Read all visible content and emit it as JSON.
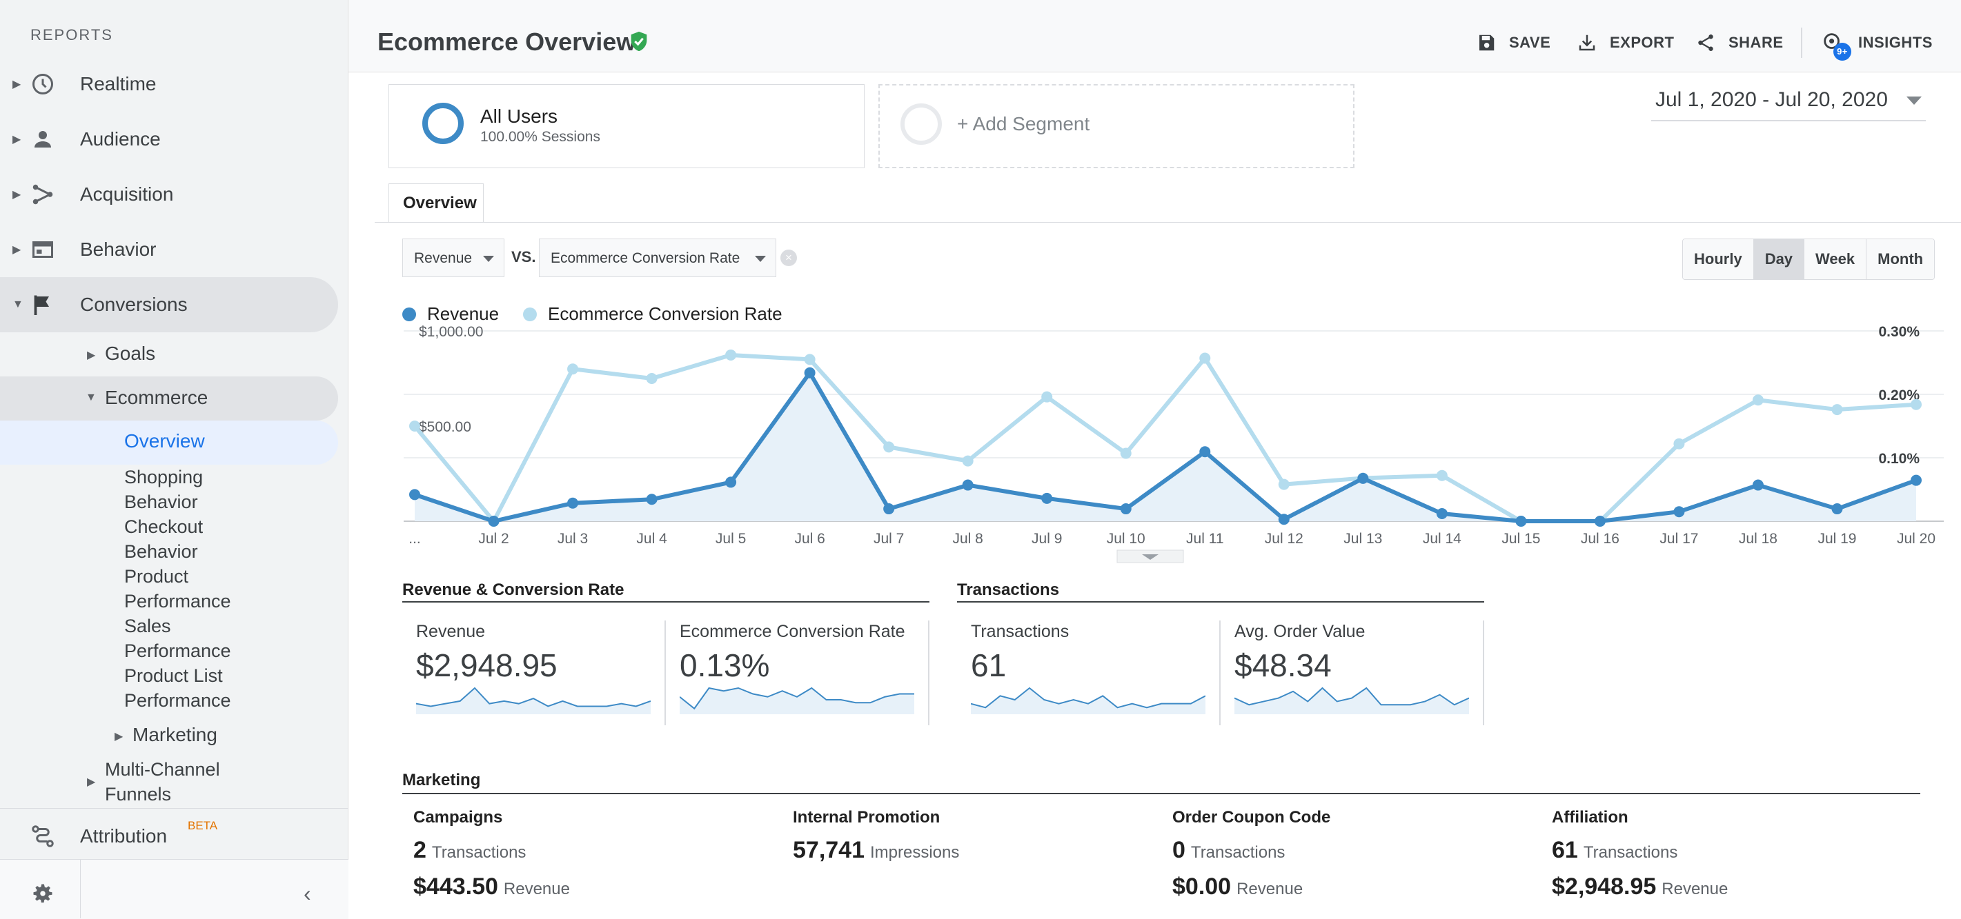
{
  "sidebar": {
    "section_label": "REPORTS",
    "items": [
      {
        "label": "Realtime"
      },
      {
        "label": "Audience"
      },
      {
        "label": "Acquisition"
      },
      {
        "label": "Behavior"
      },
      {
        "label": "Conversions"
      }
    ],
    "sub": {
      "goals": "Goals",
      "ecommerce": "Ecommerce",
      "overview": "Overview",
      "shopping_behavior": [
        "Shopping",
        "Behavior"
      ],
      "checkout_behavior": [
        "Checkout",
        "Behavior"
      ],
      "product_performance": [
        "Product",
        "Performance"
      ],
      "sales_performance": [
        "Sales",
        "Performance"
      ],
      "product_list_performance": [
        "Product List",
        "Performance"
      ],
      "marketing": "Marketing",
      "multi_channel": [
        "Multi-Channel",
        "Funnels"
      ]
    },
    "attribution": "Attribution",
    "beta": "BETA"
  },
  "header": {
    "title": "Ecommerce Overview",
    "actions": {
      "save": "SAVE",
      "export": "EXPORT",
      "share": "SHARE",
      "insights": "INSIGHTS"
    },
    "insights_badge": "9+"
  },
  "segments": {
    "primary_name": "All Users",
    "primary_sub": "100.00% Sessions",
    "add_label": "+ Add Segment"
  },
  "date_range": "Jul 1, 2020 - Jul 20, 2020",
  "tabs": {
    "overview": "Overview"
  },
  "metric_picker": {
    "primary": "Revenue",
    "vs": "VS.",
    "secondary": "Ecommerce Conversion Rate"
  },
  "granularity": {
    "options": [
      "Hourly",
      "Day",
      "Week",
      "Month"
    ],
    "selected": "Day"
  },
  "colors": {
    "revenue": "#3d8ac6",
    "conversion": "#b4dcee",
    "accent": "#1a73e8",
    "verified": "#34a853"
  },
  "chart_data": {
    "type": "line",
    "x": [
      "...",
      "Jul 2",
      "Jul 3",
      "Jul 4",
      "Jul 5",
      "Jul 6",
      "Jul 7",
      "Jul 8",
      "Jul 9",
      "Jul 10",
      "Jul 11",
      "Jul 12",
      "Jul 13",
      "Jul 14",
      "Jul 15",
      "Jul 16",
      "Jul 17",
      "Jul 18",
      "Jul 19",
      "Jul 20"
    ],
    "y_left_ticks": [
      "$1,000.00",
      "$500.00"
    ],
    "y_right_ticks": [
      "0.30%",
      "0.20%",
      "0.10%"
    ],
    "y_left_range": [
      0,
      1000
    ],
    "y_right_range": [
      0,
      0.3
    ],
    "series": [
      {
        "name": "Revenue",
        "axis": "left",
        "area": true,
        "values": [
          140,
          0,
          95,
          115,
          205,
          780,
          65,
          190,
          120,
          65,
          365,
          10,
          225,
          40,
          0,
          0,
          50,
          190,
          65,
          215
        ]
      },
      {
        "name": "Ecommerce Conversion Rate",
        "axis": "right",
        "area": false,
        "values": [
          0.15,
          0.0,
          0.24,
          0.225,
          0.262,
          0.255,
          0.117,
          0.095,
          0.196,
          0.107,
          0.257,
          0.058,
          0.068,
          0.072,
          0.0,
          0.0,
          0.122,
          0.191,
          0.176,
          0.184
        ]
      }
    ],
    "grid": true
  },
  "sections": {
    "revenue_conv": "Revenue & Conversion Rate",
    "transactions": "Transactions",
    "marketing": "Marketing"
  },
  "kpis": [
    {
      "name": "Revenue",
      "value": "$2,948.95",
      "spark": [
        3,
        2,
        3,
        4,
        9,
        3,
        4,
        3,
        5,
        2,
        4,
        2,
        2,
        2,
        3,
        2,
        4
      ]
    },
    {
      "name": "Ecommerce Conversion Rate",
      "value": "0.13%",
      "spark": [
        5,
        1,
        8,
        7,
        8,
        6,
        5,
        7,
        5,
        8,
        4,
        4,
        3,
        3,
        5,
        6,
        6
      ]
    },
    {
      "name": "Transactions",
      "value": "61",
      "spark": [
        2,
        1,
        4,
        3,
        6,
        3,
        2,
        3,
        2,
        4,
        1,
        2,
        1,
        2,
        2,
        2,
        4
      ]
    },
    {
      "name": "Avg. Order Value",
      "value": "$48.34",
      "spark": [
        4,
        2,
        3,
        4,
        6,
        3,
        7,
        3,
        4,
        7,
        2,
        2,
        2,
        3,
        5,
        2,
        4
      ]
    }
  ],
  "marketing": [
    {
      "name": "Campaigns",
      "count": "2",
      "count_unit": "Transactions",
      "amount": "$443.50",
      "amount_unit": "Revenue"
    },
    {
      "name": "Internal Promotion",
      "count": "57,741",
      "count_unit": "Impressions",
      "amount": "",
      "amount_unit": ""
    },
    {
      "name": "Order Coupon Code",
      "count": "0",
      "count_unit": "Transactions",
      "amount": "$0.00",
      "amount_unit": "Revenue"
    },
    {
      "name": "Affiliation",
      "count": "61",
      "count_unit": "Transactions",
      "amount": "$2,948.95",
      "amount_unit": "Revenue"
    }
  ]
}
